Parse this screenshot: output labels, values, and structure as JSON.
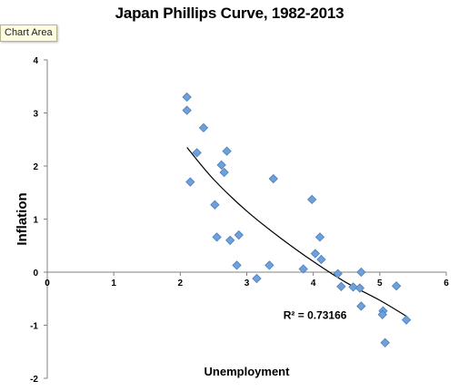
{
  "title": "Japan Phillips Curve, 1982-2013",
  "tooltip": "Chart Area",
  "chart_data": {
    "type": "scatter",
    "title": "Japan Phillips Curve, 1982-2013",
    "xlabel": "Unemployment",
    "ylabel": "Inflation",
    "xlim": [
      0,
      6
    ],
    "ylim": [
      -2,
      4
    ],
    "x_ticks": [
      "0",
      "1",
      "2",
      "3",
      "4",
      "5",
      "6"
    ],
    "y_ticks": [
      "4",
      "3",
      "2",
      "1",
      "0",
      "-1",
      "-2"
    ],
    "grid": false,
    "legend": "none",
    "marker_color": "#6fa0d8",
    "marker_stroke": "#4a7fbf",
    "series": [
      {
        "points": [
          [
            2.1,
            3.3
          ],
          [
            2.1,
            3.05
          ],
          [
            2.35,
            2.72
          ],
          [
            2.25,
            2.25
          ],
          [
            2.7,
            2.28
          ],
          [
            2.62,
            2.02
          ],
          [
            2.66,
            1.88
          ],
          [
            2.15,
            1.7
          ],
          [
            3.4,
            1.76
          ],
          [
            2.52,
            1.27
          ],
          [
            3.98,
            1.37
          ],
          [
            2.55,
            0.66
          ],
          [
            2.75,
            0.6
          ],
          [
            2.88,
            0.7
          ],
          [
            4.1,
            0.66
          ],
          [
            4.03,
            0.35
          ],
          [
            4.12,
            0.24
          ],
          [
            2.85,
            0.13
          ],
          [
            3.34,
            0.13
          ],
          [
            3.85,
            0.06
          ],
          [
            4.37,
            -0.03
          ],
          [
            4.72,
            0.0
          ],
          [
            3.15,
            -0.12
          ],
          [
            4.42,
            -0.27
          ],
          [
            4.6,
            -0.28
          ],
          [
            4.7,
            -0.3
          ],
          [
            5.25,
            -0.26
          ],
          [
            4.72,
            -0.64
          ],
          [
            5.05,
            -0.73
          ],
          [
            5.04,
            -0.8
          ],
          [
            5.4,
            -0.9
          ],
          [
            5.08,
            -1.33
          ]
        ]
      }
    ],
    "trendline": {
      "type": "exponential",
      "r_squared_label": "R² = 0.73166",
      "curve": [
        [
          2.1,
          2.35
        ],
        [
          2.5,
          1.75
        ],
        [
          3.0,
          1.15
        ],
        [
          3.5,
          0.65
        ],
        [
          4.0,
          0.2
        ],
        [
          4.5,
          -0.2
        ],
        [
          5.0,
          -0.53
        ],
        [
          5.4,
          -0.83
        ]
      ]
    }
  }
}
